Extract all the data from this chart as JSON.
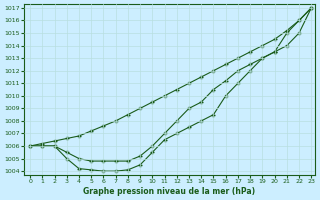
{
  "title": "Graphe pression niveau de la mer (hPa)",
  "bg_color": "#cceeff",
  "line_color": "#1a5c1a",
  "grid_color": "#b8dfe0",
  "x_min": 0,
  "x_max": 23,
  "y_min": 1004,
  "y_max": 1017,
  "x_ticks": [
    0,
    1,
    2,
    3,
    4,
    5,
    6,
    7,
    8,
    9,
    10,
    11,
    12,
    13,
    14,
    15,
    16,
    17,
    18,
    19,
    20,
    21,
    22,
    23
  ],
  "y_ticks": [
    1004,
    1005,
    1006,
    1007,
    1008,
    1009,
    1010,
    1011,
    1012,
    1013,
    1014,
    1015,
    1016,
    1017
  ],
  "line_top": [
    1006.0,
    1006.2,
    1006.4,
    1006.6,
    1006.8,
    1007.2,
    1007.6,
    1008.0,
    1008.5,
    1009.0,
    1009.5,
    1010.0,
    1010.5,
    1011.0,
    1011.5,
    1012.0,
    1012.5,
    1013.0,
    1013.5,
    1014.0,
    1014.5,
    1015.2,
    1016.0,
    1017.0
  ],
  "line_mid": [
    1006.0,
    1006.0,
    1006.0,
    1005.5,
    1005.0,
    1004.8,
    1004.8,
    1004.8,
    1004.8,
    1005.2,
    1006.0,
    1007.0,
    1008.0,
    1009.0,
    1009.5,
    1010.5,
    1011.2,
    1012.0,
    1012.5,
    1013.0,
    1013.5,
    1015.0,
    1016.0,
    1017.0
  ],
  "line_bot": [
    1006.0,
    1006.0,
    1006.0,
    1005.0,
    1004.2,
    1004.1,
    1004.0,
    1004.0,
    1004.1,
    1004.5,
    1005.5,
    1006.5,
    1007.0,
    1007.5,
    1008.0,
    1008.5,
    1010.0,
    1011.0,
    1012.0,
    1013.0,
    1013.5,
    1014.0,
    1015.0,
    1017.0
  ]
}
